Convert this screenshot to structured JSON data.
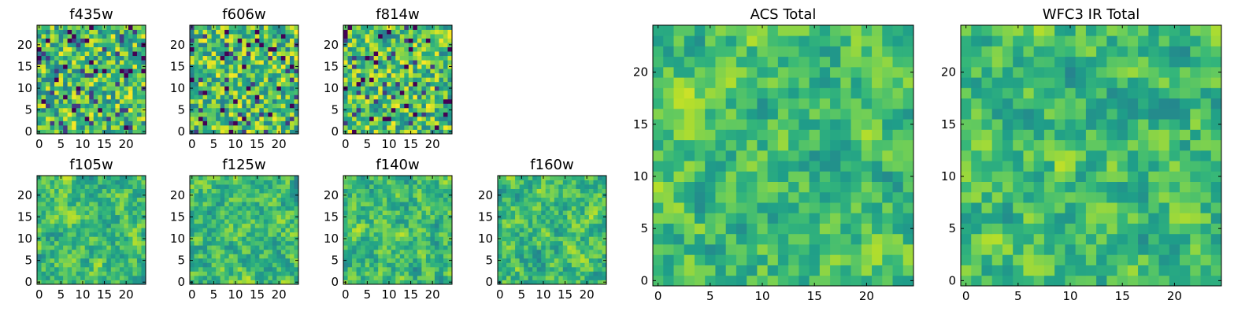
{
  "figure": {
    "panels": [
      {
        "id": "f435w",
        "title": "f435w",
        "size": "small",
        "seed": 11,
        "xticks": [
          "0",
          "5",
          "10",
          "15",
          "20"
        ],
        "yticks": [
          "0",
          "5",
          "10",
          "15",
          "20"
        ]
      },
      {
        "id": "f606w",
        "title": "f606w",
        "size": "small",
        "seed": 23,
        "xticks": [
          "0",
          "5",
          "10",
          "15",
          "20"
        ],
        "yticks": [
          "0",
          "5",
          "10",
          "15",
          "20"
        ]
      },
      {
        "id": "f814w",
        "title": "f814w",
        "size": "small",
        "seed": 37,
        "xticks": [
          "0",
          "5",
          "10",
          "15",
          "20"
        ],
        "yticks": [
          "0",
          "5",
          "10",
          "15",
          "20"
        ]
      },
      {
        "id": "f105w",
        "title": "f105w",
        "size": "small",
        "seed": 41,
        "xticks": [
          "0",
          "5",
          "10",
          "15",
          "20"
        ],
        "yticks": [
          "0",
          "5",
          "10",
          "15",
          "20"
        ]
      },
      {
        "id": "f125w",
        "title": "f125w",
        "size": "small",
        "seed": 53,
        "xticks": [
          "0",
          "5",
          "10",
          "15",
          "20"
        ],
        "yticks": [
          "0",
          "5",
          "10",
          "15",
          "20"
        ]
      },
      {
        "id": "f140w",
        "title": "f140w",
        "size": "small",
        "seed": 67,
        "xticks": [
          "0",
          "5",
          "10",
          "15",
          "20"
        ],
        "yticks": [
          "0",
          "5",
          "10",
          "15",
          "20"
        ]
      },
      {
        "id": "f160w",
        "title": "f160w",
        "size": "small",
        "seed": 79,
        "xticks": [
          "0",
          "5",
          "10",
          "15",
          "20"
        ],
        "yticks": [
          "0",
          "5",
          "10",
          "15",
          "20"
        ]
      },
      {
        "id": "acs-total",
        "title": "ACS Total",
        "size": "large",
        "seed": 83,
        "xticks": [
          "0",
          "5",
          "10",
          "15",
          "20"
        ],
        "yticks": [
          "0",
          "5",
          "10",
          "15",
          "20"
        ]
      },
      {
        "id": "wfc3-ir-total",
        "title": "WFC3 IR Total",
        "size": "large",
        "seed": 97,
        "xticks": [
          "0",
          "5",
          "10",
          "15",
          "20"
        ],
        "yticks": [
          "0",
          "5",
          "10",
          "15",
          "20"
        ]
      }
    ]
  },
  "chart_data": [
    {
      "type": "heatmap",
      "title": "f435w",
      "grid": [
        25,
        25
      ],
      "xlim": [
        -0.5,
        24.5
      ],
      "ylim": [
        -0.5,
        24.5
      ],
      "colormap": "viridis",
      "grid_lines": false
    },
    {
      "type": "heatmap",
      "title": "f606w",
      "grid": [
        25,
        25
      ],
      "xlim": [
        -0.5,
        24.5
      ],
      "ylim": [
        -0.5,
        24.5
      ],
      "colormap": "viridis",
      "grid_lines": false
    },
    {
      "type": "heatmap",
      "title": "f814w",
      "grid": [
        25,
        25
      ],
      "xlim": [
        -0.5,
        24.5
      ],
      "ylim": [
        -0.5,
        24.5
      ],
      "colormap": "viridis",
      "grid_lines": false
    },
    {
      "type": "heatmap",
      "title": "f105w",
      "grid": [
        25,
        25
      ],
      "xlim": [
        -0.5,
        24.5
      ],
      "ylim": [
        -0.5,
        24.5
      ],
      "colormap": "viridis",
      "grid_lines": false
    },
    {
      "type": "heatmap",
      "title": "f125w",
      "grid": [
        25,
        25
      ],
      "xlim": [
        -0.5,
        24.5
      ],
      "ylim": [
        -0.5,
        24.5
      ],
      "colormap": "viridis",
      "grid_lines": false
    },
    {
      "type": "heatmap",
      "title": "f140w",
      "grid": [
        25,
        25
      ],
      "xlim": [
        -0.5,
        24.5
      ],
      "ylim": [
        -0.5,
        24.5
      ],
      "colormap": "viridis",
      "grid_lines": false
    },
    {
      "type": "heatmap",
      "title": "f160w",
      "grid": [
        25,
        25
      ],
      "xlim": [
        -0.5,
        24.5
      ],
      "ylim": [
        -0.5,
        24.5
      ],
      "colormap": "viridis",
      "grid_lines": false
    },
    {
      "type": "heatmap",
      "title": "ACS Total",
      "grid": [
        25,
        25
      ],
      "xlim": [
        -0.5,
        24.5
      ],
      "ylim": [
        -0.5,
        24.5
      ],
      "colormap": "viridis",
      "grid_lines": false
    },
    {
      "type": "heatmap",
      "title": "WFC3 IR Total",
      "grid": [
        25,
        25
      ],
      "xlim": [
        -0.5,
        24.5
      ],
      "ylim": [
        -0.5,
        24.5
      ],
      "colormap": "viridis",
      "grid_lines": false
    }
  ]
}
